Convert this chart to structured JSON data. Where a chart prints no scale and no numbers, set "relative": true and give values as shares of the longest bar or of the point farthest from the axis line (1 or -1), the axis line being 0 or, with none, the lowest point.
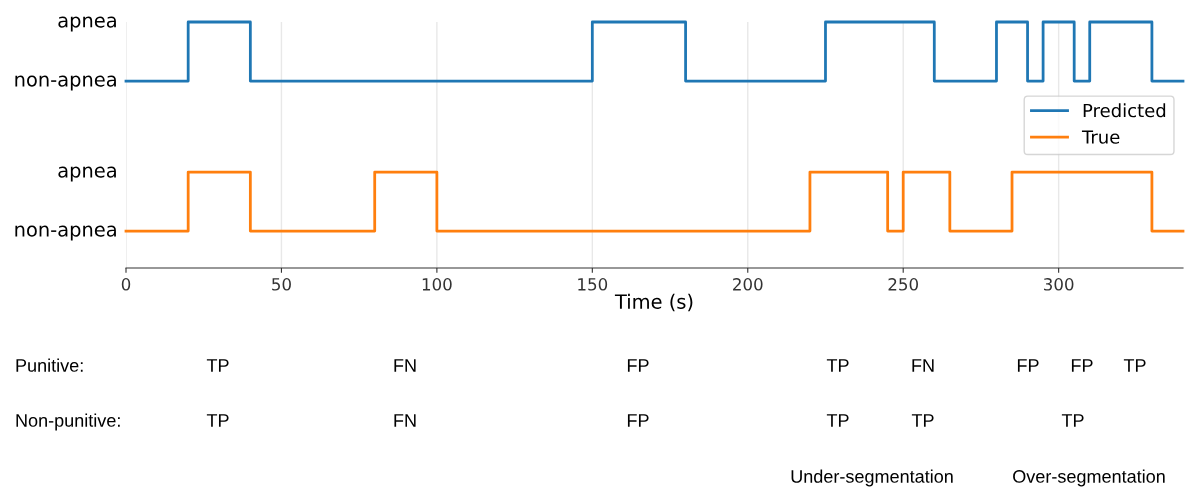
{
  "chart_data": {
    "type": "step",
    "xlabel": "Time (s)",
    "series": [
      {
        "name": "Predicted",
        "color": "#1f77b4",
        "x": [
          0,
          20,
          40,
          150,
          180,
          225,
          260,
          280,
          290,
          295,
          305,
          310,
          330,
          340
        ],
        "values": [
          0.76,
          1,
          0.76,
          1,
          0.76,
          1,
          0.76,
          1,
          0.76,
          1,
          0.76,
          1,
          0.76,
          0.76
        ]
      },
      {
        "name": "True",
        "color": "#ff7f0e",
        "x": [
          0,
          20,
          40,
          80,
          100,
          220,
          245,
          250,
          265,
          285,
          330,
          340
        ],
        "values": [
          0.15,
          0.39,
          0.15,
          0.39,
          0.15,
          0.39,
          0.15,
          0.39,
          0.15,
          0.39,
          0.15,
          0.15
        ]
      }
    ],
    "xlim": [
      0,
      340
    ],
    "xticks": [
      0,
      50,
      100,
      150,
      200,
      250,
      300
    ],
    "relative": true,
    "tick_labels": "x",
    "grid": "x",
    "legend": "right",
    "line_style": "solid",
    "annotations": [
      "non-apnea",
      "apnea",
      "non-apnea",
      "apnea",
      "Punitive:",
      "TP",
      "FN",
      "FP",
      "TP",
      "FN",
      "FP",
      "FP",
      "TP",
      "Non-punitive:",
      "TP",
      "FN",
      "FP",
      "TP",
      "TP",
      "TP",
      "Under-segmentation",
      "Over-segmentation"
    ]
  }
}
